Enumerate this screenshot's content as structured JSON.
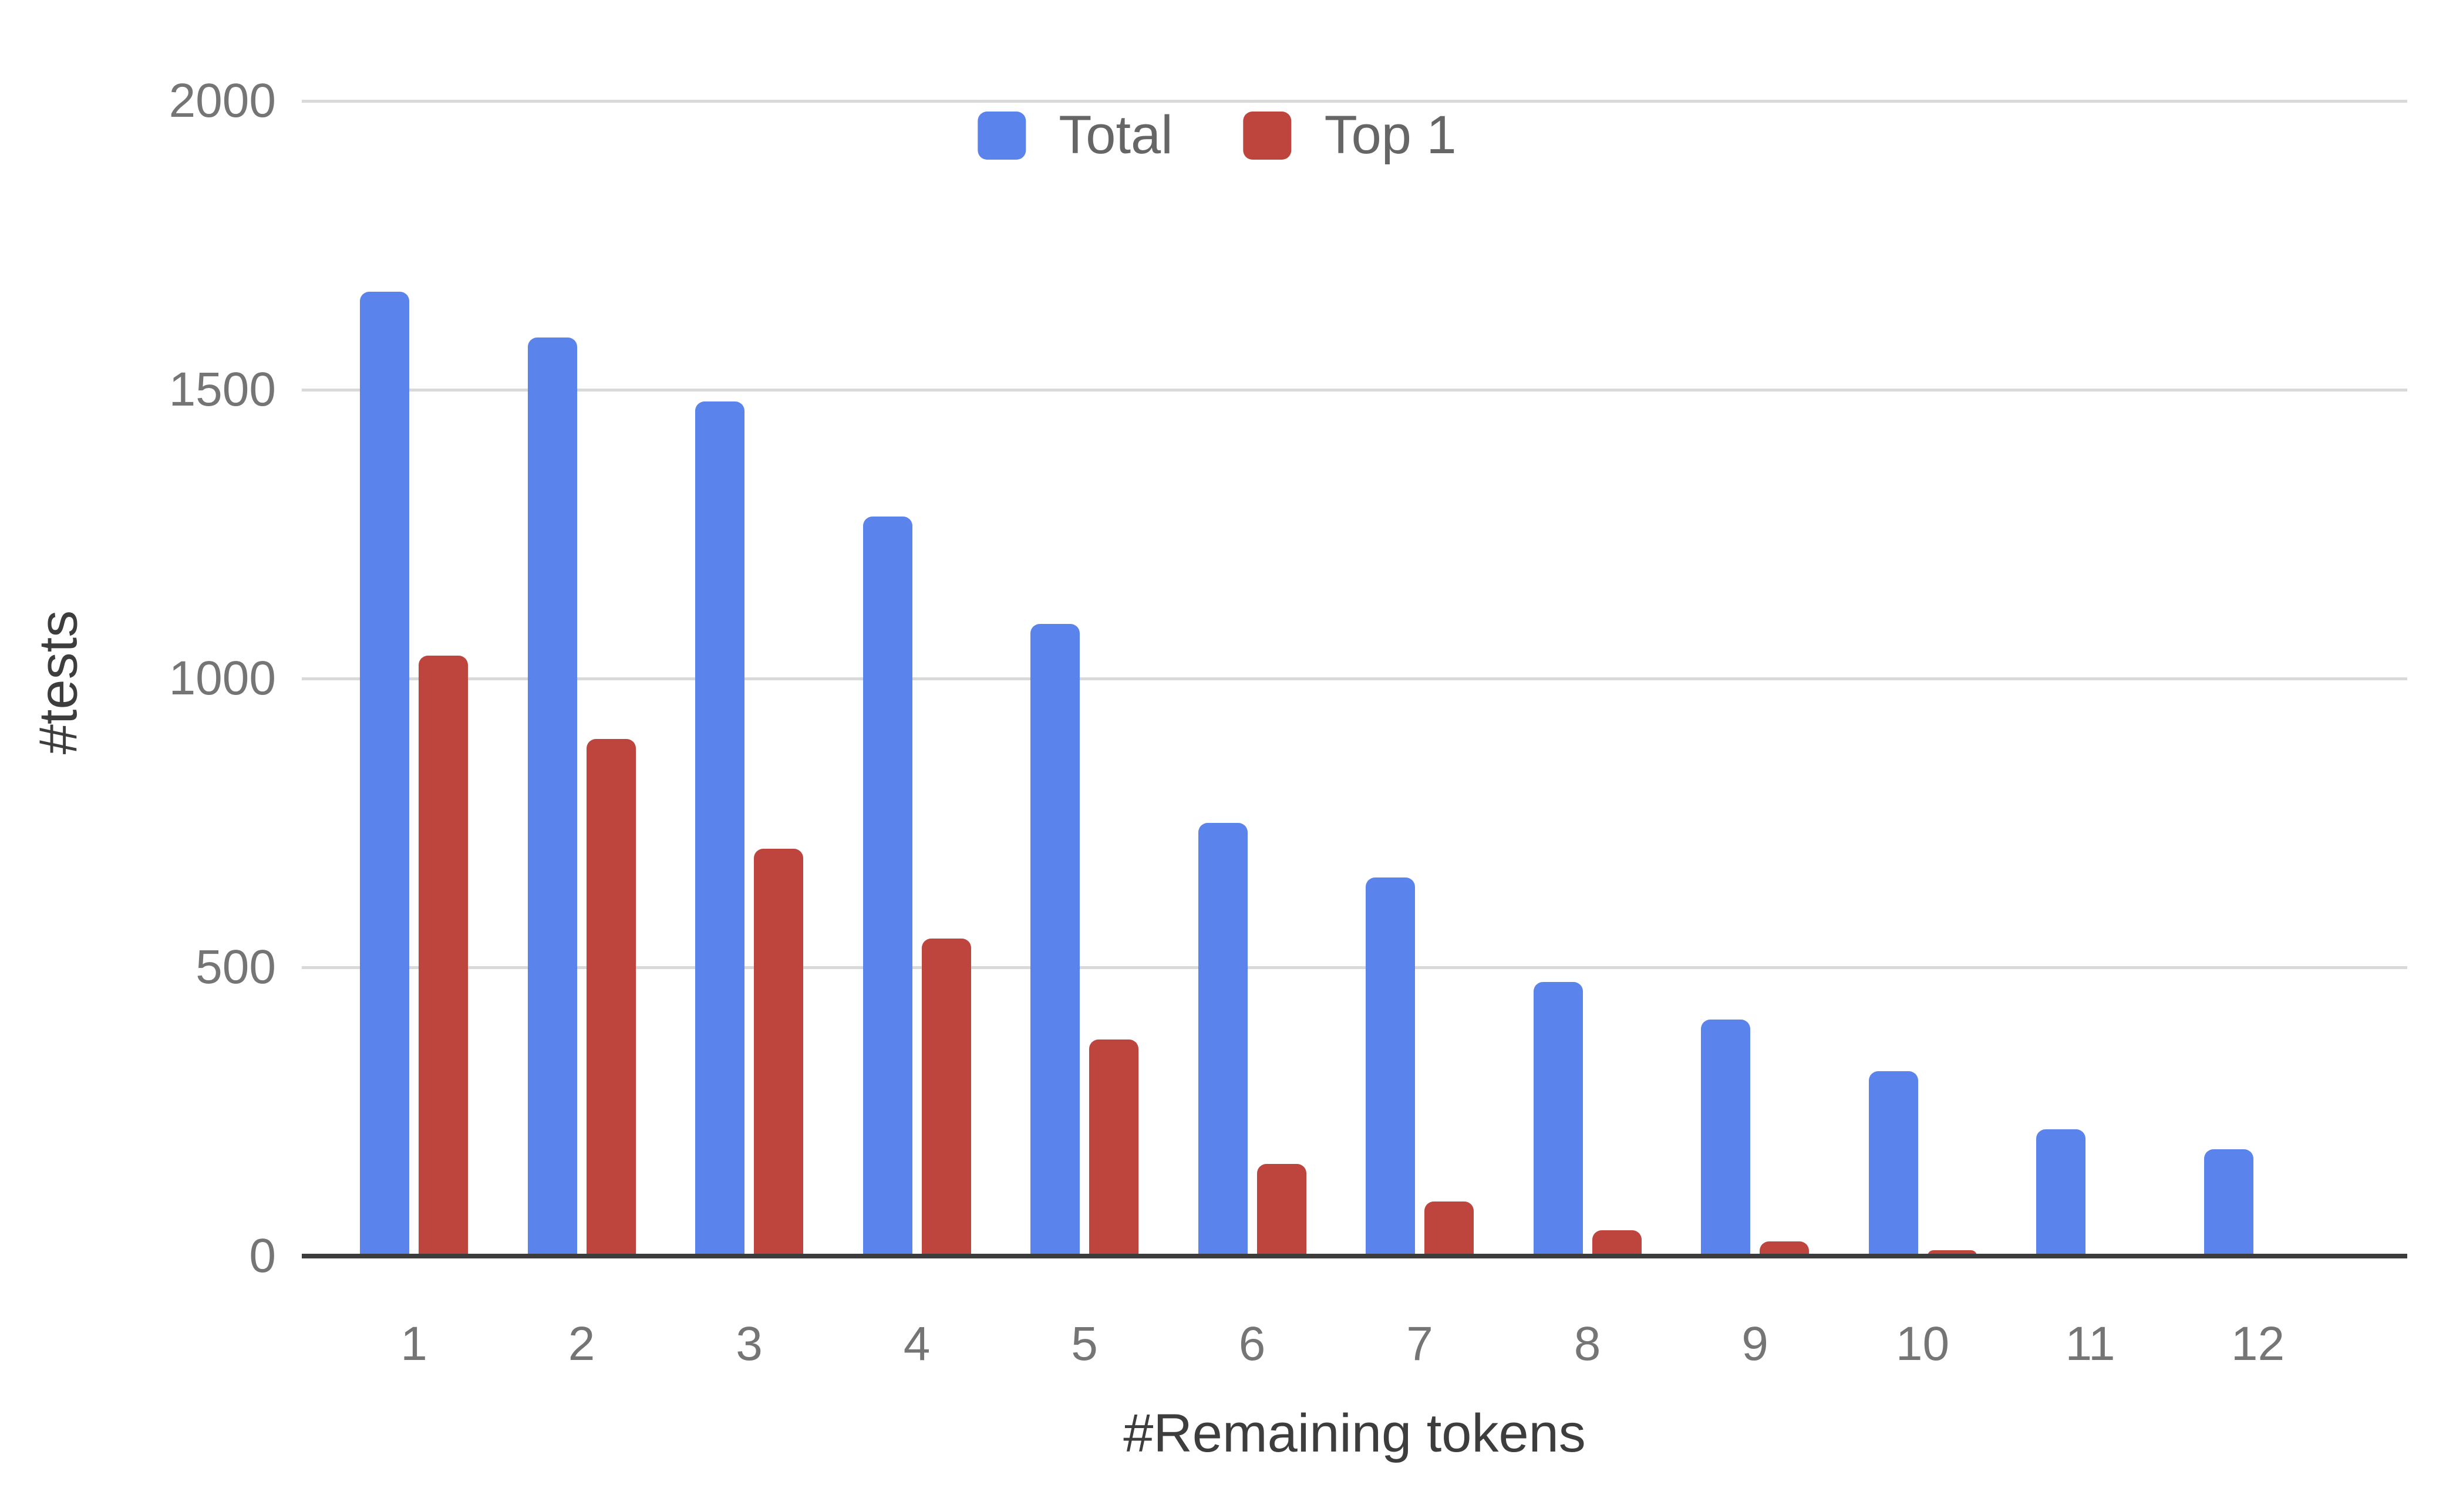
{
  "chart_data": {
    "type": "bar",
    "title": "",
    "categories": [
      "1",
      "2",
      "3",
      "4",
      "5",
      "6",
      "7",
      "8",
      "9",
      "10",
      "11",
      "12"
    ],
    "series": [
      {
        "name": "Total",
        "color": "#5b83ec",
        "values": [
          1670,
          1590,
          1480,
          1280,
          1095,
          750,
          655,
          475,
          410,
          320,
          220,
          185
        ]
      },
      {
        "name": "Top 1",
        "color": "#bd453e",
        "values": [
          1040,
          895,
          705,
          550,
          375,
          160,
          95,
          45,
          25,
          10,
          0,
          0
        ]
      }
    ],
    "xlabel": "#Remaining tokens",
    "ylabel": "#tests",
    "ylim": [
      0,
      2000
    ],
    "yticks": [
      "0",
      "500",
      "1000",
      "1500",
      "2000"
    ],
    "legend_position": "top-center",
    "grid": true
  },
  "colors": {
    "series_total": "#5b83ec",
    "series_top1": "#bd453e",
    "gridline": "#d9d9d9",
    "axis_baseline": "#3c3c3c",
    "tick_label": "#757575",
    "axis_title": "#3d3d3d",
    "legend_label": "#666666",
    "background": "#ffffff"
  }
}
